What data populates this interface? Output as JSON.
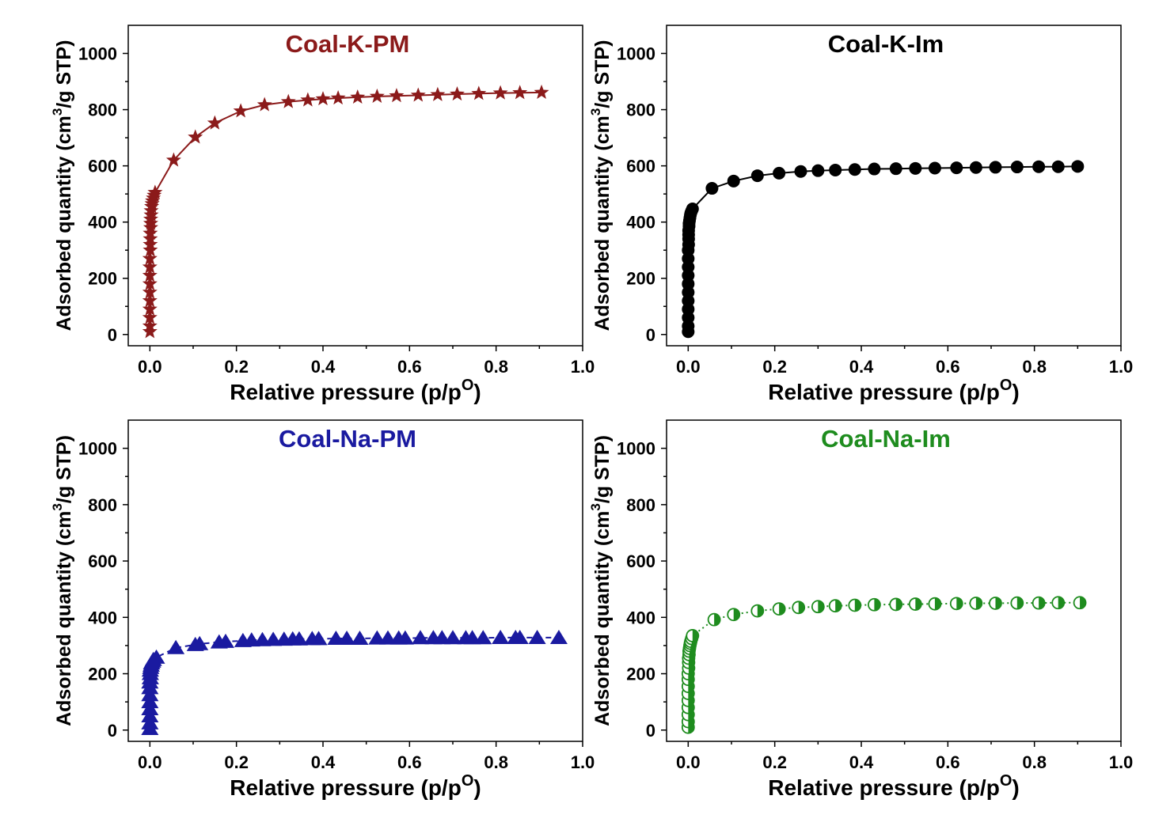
{
  "chart_data": [
    {
      "type": "line",
      "title": "Coal-K-PM",
      "title_color": "#8B1A1A",
      "series_color": "#8B1A1A",
      "marker": "star",
      "line_style": "solid",
      "xlabel": "Relative pressure (p/p",
      "xlabel_sup": "O",
      "xlabel_end": ")",
      "ylabel": "Adsorbed quantity (cm",
      "ylabel_sup": "3",
      "ylabel_end": "/g STP)",
      "xlim": [
        -0.05,
        1.0
      ],
      "ylim": [
        -40,
        1100
      ],
      "xticks": [
        "0.0",
        "0.2",
        "0.4",
        "0.6",
        "0.8",
        "1.0"
      ],
      "xtick_values": [
        0,
        0.2,
        0.4,
        0.6,
        0.8,
        1.0
      ],
      "yticks": [
        "0",
        "200",
        "400",
        "600",
        "800",
        "1000"
      ],
      "ytick_values": [
        0,
        200,
        400,
        600,
        800,
        1000
      ],
      "series": [
        {
          "x": [
            0.0,
            0.0,
            0.0,
            0.0,
            0.0,
            0.0,
            0.0,
            0.0,
            0.0,
            0.0,
            0.001,
            0.001,
            0.001,
            0.001,
            0.002,
            0.002,
            0.002,
            0.003,
            0.003,
            0.004,
            0.005,
            0.006,
            0.008,
            0.01,
            0.012,
            0.055,
            0.105,
            0.15,
            0.21,
            0.265,
            0.32,
            0.365,
            0.4,
            0.435,
            0.48,
            0.525,
            0.57,
            0.62,
            0.665,
            0.71,
            0.76,
            0.81,
            0.855,
            0.905
          ],
          "y": [
            10,
            30,
            60,
            90,
            120,
            150,
            180,
            210,
            240,
            270,
            300,
            320,
            340,
            360,
            380,
            395,
            410,
            425,
            440,
            455,
            465,
            475,
            485,
            495,
            505,
            620,
            702,
            752,
            795,
            817,
            828,
            834,
            838,
            841,
            844,
            847,
            849,
            851,
            853,
            855,
            857,
            859,
            860,
            861
          ]
        }
      ]
    },
    {
      "type": "line",
      "title": "Coal-K-Im",
      "title_color": "#000000",
      "series_color": "#000000",
      "marker": "circle",
      "line_style": "solid",
      "xlabel": "Relative pressure (p/p",
      "xlabel_sup": "O",
      "xlabel_end": ")",
      "ylabel": "Adsorbed quantity (cm",
      "ylabel_sup": "3",
      "ylabel_end": "/g STP)",
      "xlim": [
        -0.05,
        1.0
      ],
      "ylim": [
        -40,
        1100
      ],
      "xticks": [
        "0.0",
        "0.2",
        "0.4",
        "0.6",
        "0.8",
        "1.0"
      ],
      "xtick_values": [
        0,
        0.2,
        0.4,
        0.6,
        0.8,
        1.0
      ],
      "yticks": [
        "0",
        "200",
        "400",
        "600",
        "800",
        "1000"
      ],
      "ytick_values": [
        0,
        200,
        400,
        600,
        800,
        1000
      ],
      "series": [
        {
          "x": [
            0.0,
            0.0,
            0.0,
            0.0,
            0.0,
            0.0,
            0.0,
            0.0,
            0.0,
            0.0,
            0.0,
            0.001,
            0.001,
            0.001,
            0.001,
            0.002,
            0.002,
            0.003,
            0.004,
            0.005,
            0.006,
            0.008,
            0.01,
            0.055,
            0.105,
            0.16,
            0.21,
            0.26,
            0.3,
            0.34,
            0.385,
            0.43,
            0.48,
            0.525,
            0.57,
            0.62,
            0.665,
            0.71,
            0.76,
            0.81,
            0.855,
            0.9
          ],
          "y": [
            10,
            30,
            60,
            90,
            120,
            150,
            180,
            210,
            240,
            270,
            300,
            320,
            340,
            355,
            370,
            385,
            395,
            405,
            415,
            425,
            432,
            440,
            447,
            520,
            546,
            565,
            574,
            580,
            583,
            585,
            587,
            589,
            590,
            591,
            592,
            593,
            594,
            595,
            596,
            597,
            597,
            598
          ]
        }
      ]
    },
    {
      "type": "line",
      "title": "Coal-Na-PM",
      "title_color": "#1A1AA0",
      "series_color": "#1A1AA0",
      "marker": "triangle",
      "line_style": "dashed",
      "xlabel": "Relative pressure (p/p",
      "xlabel_sup": "O",
      "xlabel_end": ")",
      "ylabel": "Adsorbed quantity (cm",
      "ylabel_sup": "3",
      "ylabel_end": "/g STP)",
      "xlim": [
        -0.05,
        1.0
      ],
      "ylim": [
        -40,
        1100
      ],
      "xticks": [
        "0.0",
        "0.2",
        "0.4",
        "0.6",
        "0.8",
        "1.0"
      ],
      "xtick_values": [
        0,
        0.2,
        0.4,
        0.6,
        0.8,
        1.0
      ],
      "yticks": [
        "0",
        "200",
        "400",
        "600",
        "800",
        "1000"
      ],
      "ytick_values": [
        0,
        200,
        400,
        600,
        800,
        1000
      ],
      "series": [
        {
          "x": [
            0.0,
            0.0,
            0.0,
            0.0,
            0.0,
            0.0,
            0.0,
            0.0,
            0.001,
            0.001,
            0.001,
            0.002,
            0.003,
            0.004,
            0.006,
            0.008,
            0.015,
            0.06,
            0.105,
            0.115,
            0.16,
            0.175,
            0.215,
            0.235,
            0.26,
            0.285,
            0.31,
            0.33,
            0.345,
            0.375,
            0.39,
            0.43,
            0.455,
            0.485,
            0.525,
            0.55,
            0.575,
            0.59,
            0.625,
            0.655,
            0.675,
            0.7,
            0.73,
            0.745,
            0.77,
            0.81,
            0.845,
            0.855,
            0.895,
            0.945
          ],
          "y": [
            5,
            25,
            50,
            75,
            100,
            125,
            150,
            170,
            185,
            200,
            212,
            222,
            230,
            238,
            244,
            250,
            258,
            292,
            303,
            306,
            312,
            314,
            317,
            319,
            320,
            321,
            322,
            323,
            323,
            324,
            324,
            325,
            325,
            325,
            326,
            326,
            326,
            326,
            327,
            327,
            327,
            327,
            327,
            327,
            327,
            328,
            328,
            328,
            328,
            328
          ]
        }
      ]
    },
    {
      "type": "line",
      "title": "Coal-Na-Im",
      "title_color": "#1E8C1E",
      "series_color": "#1E8C1E",
      "marker": "half-circle",
      "line_style": "dotted",
      "xlabel": "Relative pressure (p/p",
      "xlabel_sup": "O",
      "xlabel_end": ")",
      "ylabel": "Adsorbed quantity (cm",
      "ylabel_sup": "3",
      "ylabel_end": "/g STP)",
      "xlim": [
        -0.05,
        1.0
      ],
      "ylim": [
        -40,
        1100
      ],
      "xticks": [
        "0.0",
        "0.2",
        "0.4",
        "0.6",
        "0.8",
        "1.0"
      ],
      "xtick_values": [
        0,
        0.2,
        0.4,
        0.6,
        0.8,
        1.0
      ],
      "yticks": [
        "0",
        "200",
        "400",
        "600",
        "800",
        "1000"
      ],
      "ytick_values": [
        0,
        200,
        400,
        600,
        800,
        1000
      ],
      "series": [
        {
          "x": [
            0.0,
            0.0,
            0.0,
            0.0,
            0.0,
            0.0,
            0.0,
            0.0,
            0.0,
            0.001,
            0.001,
            0.001,
            0.002,
            0.002,
            0.003,
            0.004,
            0.005,
            0.006,
            0.008,
            0.01,
            0.06,
            0.105,
            0.16,
            0.21,
            0.255,
            0.3,
            0.34,
            0.385,
            0.43,
            0.48,
            0.525,
            0.57,
            0.62,
            0.665,
            0.71,
            0.76,
            0.81,
            0.855,
            0.905
          ],
          "y": [
            10,
            30,
            55,
            80,
            105,
            130,
            155,
            180,
            200,
            220,
            240,
            255,
            268,
            280,
            290,
            300,
            308,
            315,
            325,
            335,
            392,
            410,
            423,
            430,
            435,
            438,
            441,
            443,
            445,
            446,
            447,
            448,
            449,
            450,
            450,
            451,
            451,
            452,
            452
          ]
        }
      ]
    }
  ]
}
